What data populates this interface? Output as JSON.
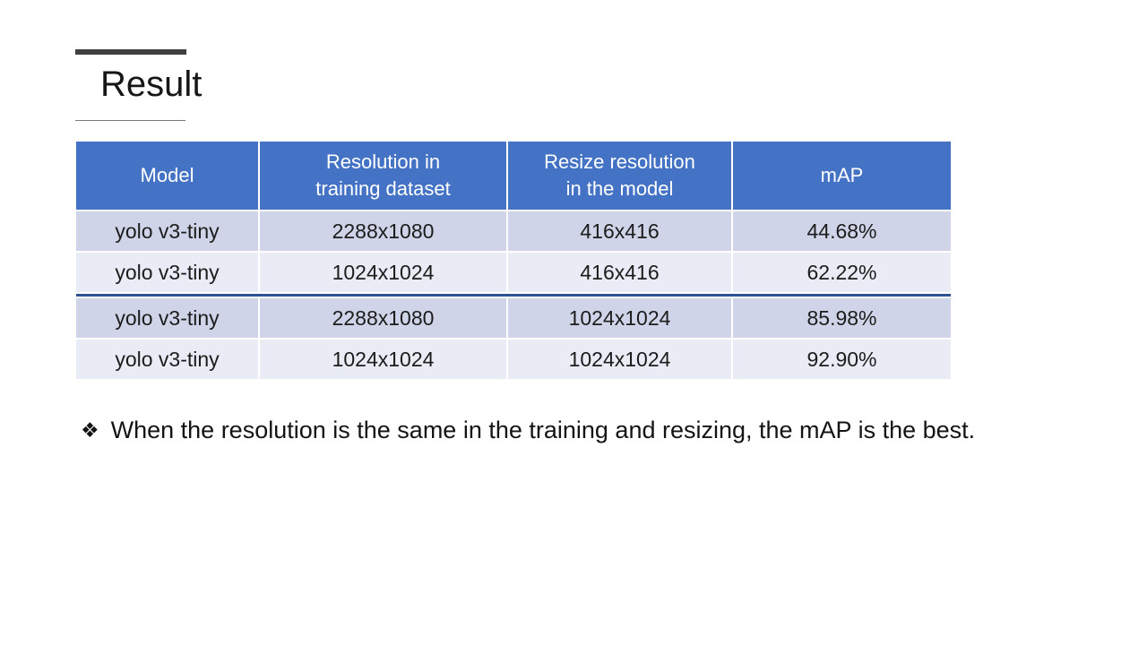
{
  "slide": {
    "title": "Result",
    "bullet_glyph": "❖",
    "bullet_text": "When the resolution is the same in the training and resizing, the mAP is the best."
  },
  "table": {
    "columns": [
      {
        "label": "Model"
      },
      {
        "label": "Resolution in\ntraining dataset"
      },
      {
        "label": "Resize resolution\nin the model"
      },
      {
        "label": "mAP"
      }
    ],
    "rows": [
      {
        "cells": [
          "yolo v3-tiny",
          "2288x1080",
          "416x416",
          "44.68%"
        ]
      },
      {
        "cells": [
          "yolo v3-tiny",
          "1024x1024",
          "416x416",
          "62.22%"
        ]
      },
      {
        "cells": [
          "yolo v3-tiny",
          "2288x1080",
          "1024x1024",
          "85.98%"
        ]
      },
      {
        "cells": [
          "yolo v3-tiny",
          "1024x1024",
          "1024x1024",
          "92.90%"
        ]
      }
    ],
    "emphasis_divider_after_row": 2
  },
  "colors": {
    "header_bg": "#4472C4",
    "header_text": "#FFFFFF",
    "band_dark": "#CFD4E8",
    "band_light": "#E9EBF5",
    "separator": "#2E5395",
    "accent_bar": "#404040"
  }
}
